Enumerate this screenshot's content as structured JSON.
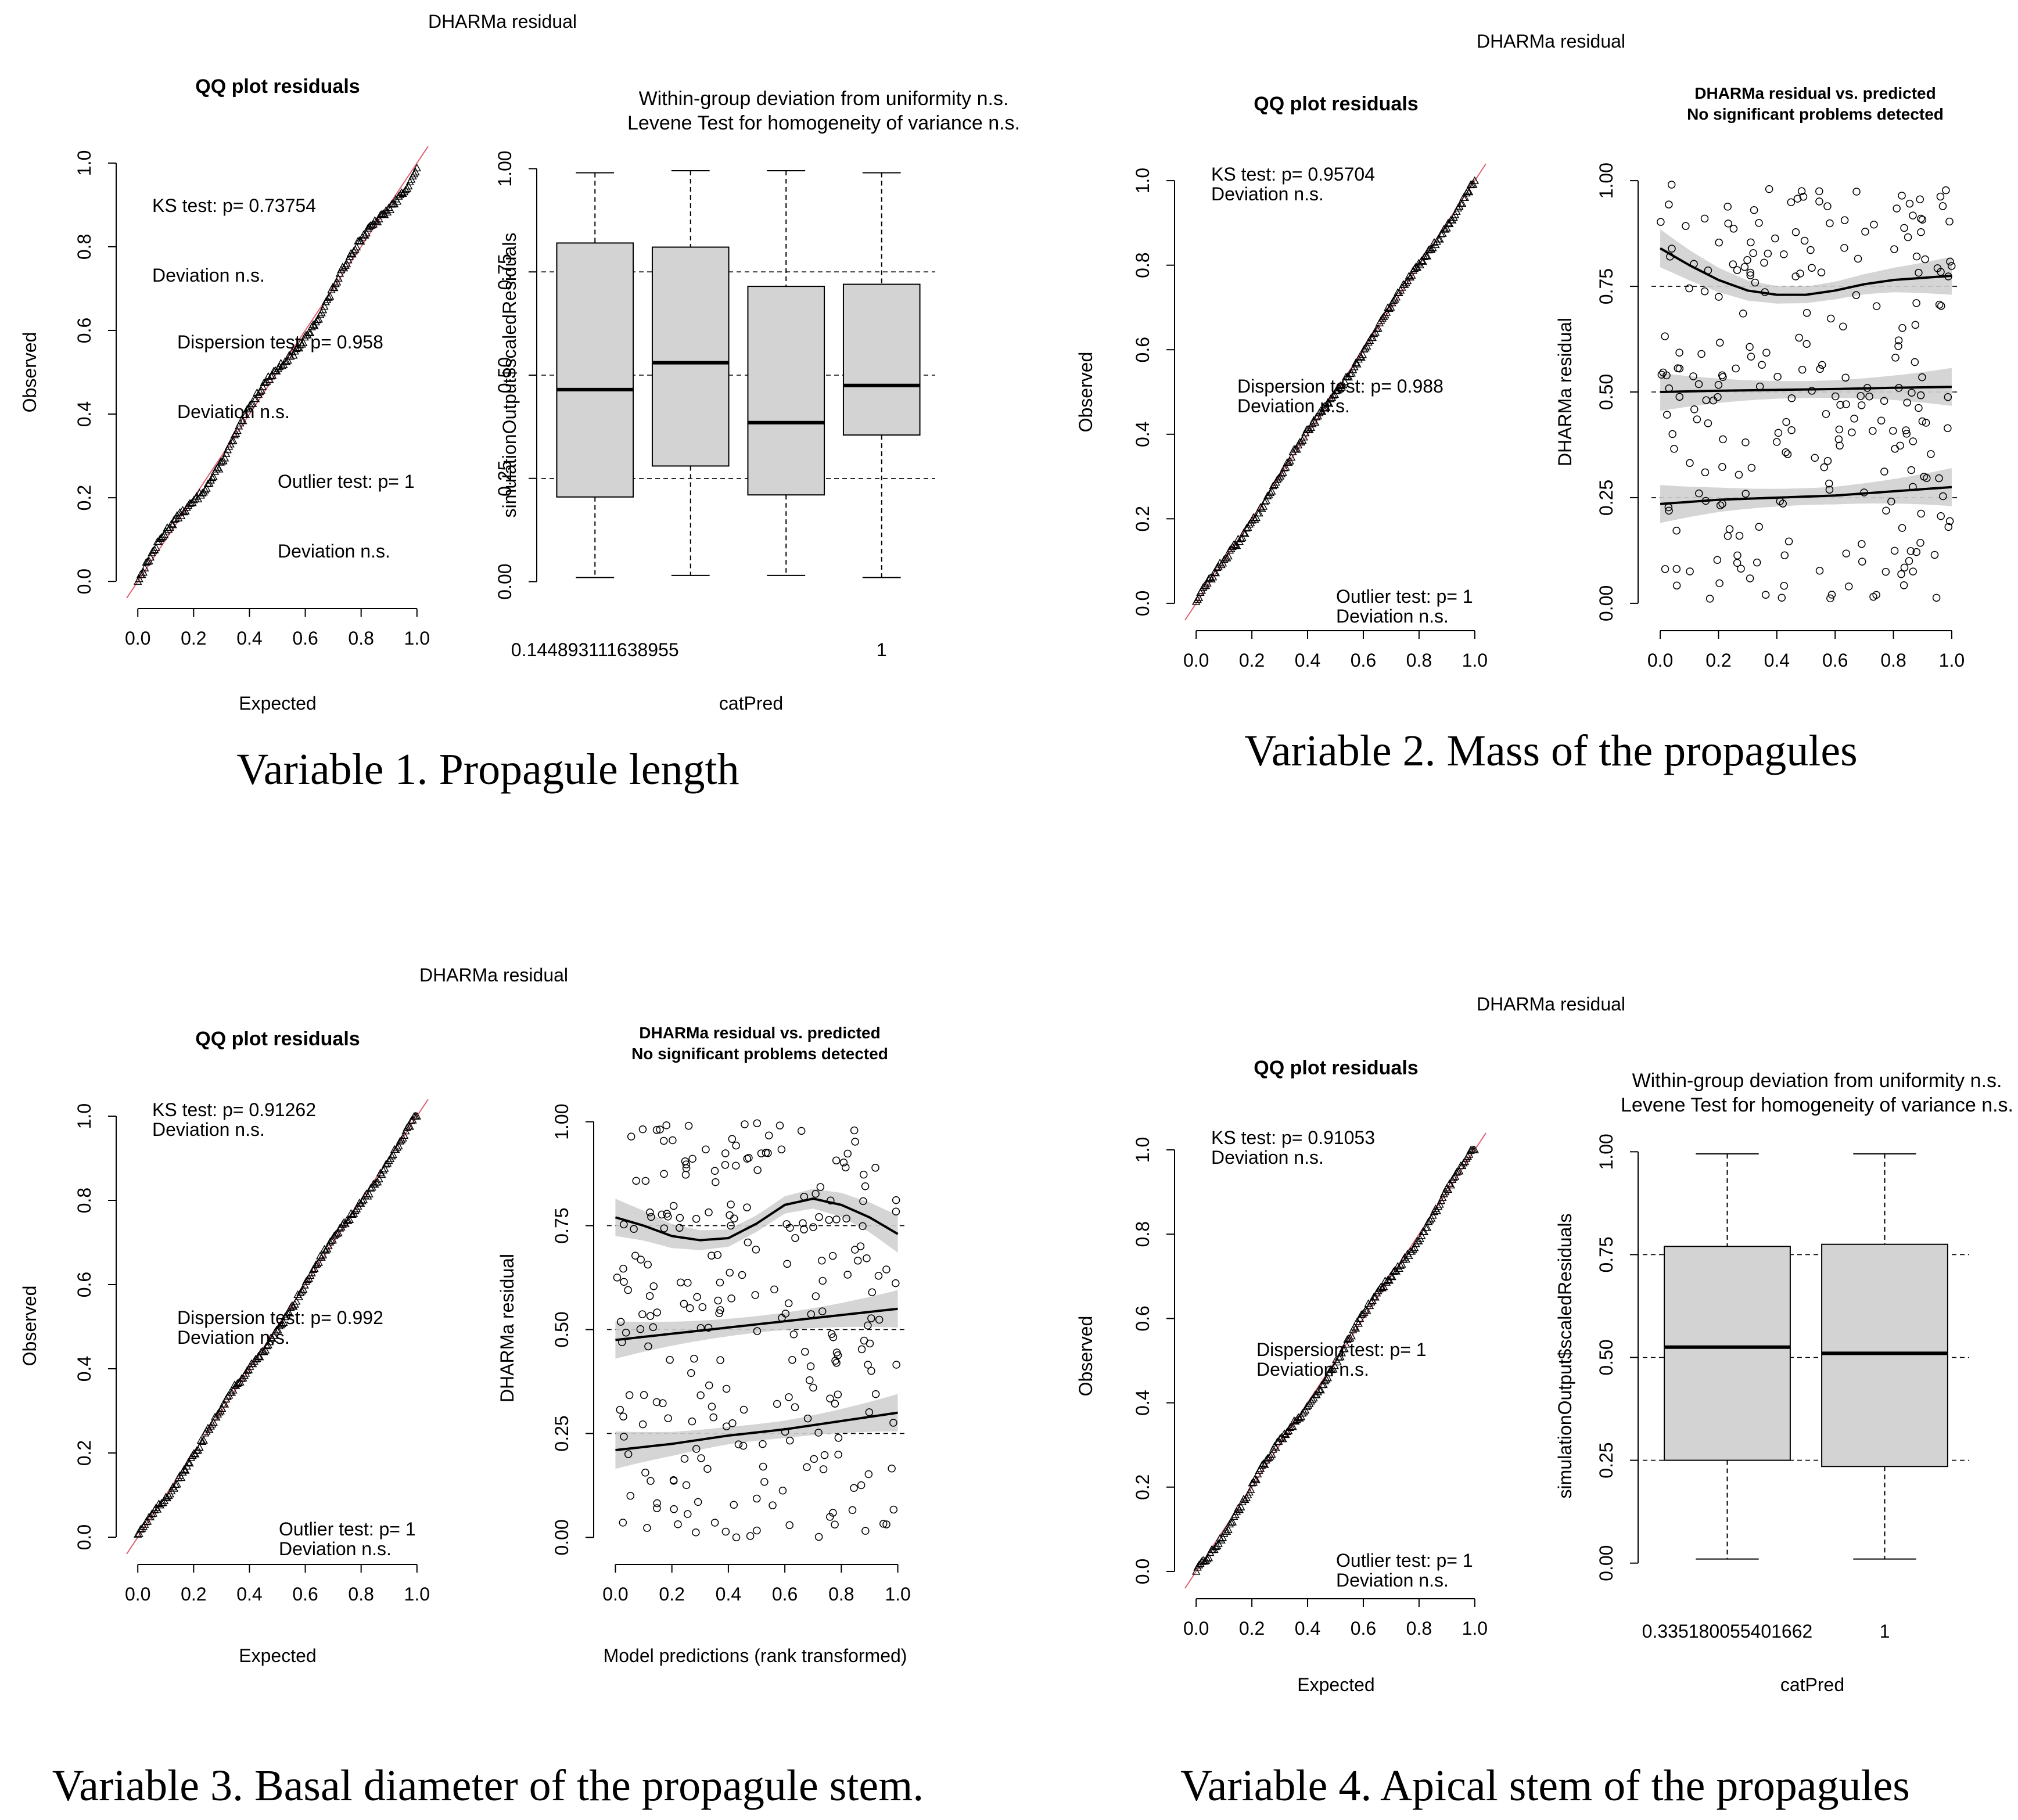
{
  "figure": {
    "panels": [
      {
        "id": "p1",
        "suptitle": "DHARMa residual",
        "caption": "Variable 1. Propagule length",
        "qq": {
          "title": "QQ plot residuals",
          "xlabel": "Expected",
          "ylabel": "Observed",
          "ticks": [
            "0.0",
            "0.2",
            "0.4",
            "0.6",
            "0.8",
            "1.0"
          ],
          "annotations": [
            "KS test: p= 0.73754",
            "Deviation  n.s.",
            "Dispersion test: p= 0.958",
            "Deviation  n.s.",
            "Outlier test: p= 1",
            "Deviation  n.s."
          ]
        },
        "right": {
          "type": "box",
          "title_lines": [
            "Within-group deviation from uniformity n.s.",
            "Levene Test for homogeneity of variance n.s."
          ],
          "title_bold": false,
          "xlabel": "catPred",
          "ylabel": "simulationOutput$scaledResiduals",
          "yticks": [
            "0.00",
            "0.25",
            "0.50",
            "0.75",
            "1.00"
          ],
          "xticklabels": [
            "0.144893111638955",
            "1"
          ],
          "xticklabel_groups": [
            1,
            4
          ]
        }
      },
      {
        "id": "p2",
        "suptitle": "DHARMa residual",
        "caption": "Variable 2. Mass of the propagules",
        "qq": {
          "title": "QQ plot residuals",
          "xlabel": "",
          "ylabel": "Observed",
          "ticks": [
            "0.0",
            "0.2",
            "0.4",
            "0.6",
            "0.8",
            "1.0"
          ],
          "annotations": [
            "KS test: p= 0.95704",
            "Deviation  n.s.",
            "Dispersion test: p= 0.988",
            "Deviation  n.s.",
            "Outlier test: p= 1",
            "Deviation  n.s."
          ]
        },
        "right": {
          "type": "scatter",
          "title_lines": [
            "DHARMa residual vs. predicted",
            "No significant problems detected"
          ],
          "title_bold": true,
          "xlabel": "",
          "ylabel": "DHARMa residual",
          "yticks": [
            "0.00",
            "0.25",
            "0.50",
            "0.75",
            "1.00"
          ],
          "xticks": [
            "0.0",
            "0.2",
            "0.4",
            "0.6",
            "0.8",
            "1.0"
          ]
        }
      },
      {
        "id": "p3",
        "suptitle": "DHARMa residual",
        "caption": "Variable 3. Basal diameter of the propagule stem.",
        "qq": {
          "title": "QQ plot residuals",
          "xlabel": "Expected",
          "ylabel": "Observed",
          "ticks": [
            "0.0",
            "0.2",
            "0.4",
            "0.6",
            "0.8",
            "1.0"
          ],
          "annotations": [
            "KS test: p= 0.91262",
            "Deviation  n.s.",
            "Dispersion test: p= 0.992",
            "Deviation  n.s.",
            "Outlier test: p= 1",
            "Deviation  n.s."
          ]
        },
        "right": {
          "type": "scatter",
          "title_lines": [
            "DHARMa residual vs. predicted",
            "No significant problems detected"
          ],
          "title_bold": true,
          "xlabel": "Model predictions (rank transformed)",
          "ylabel": "DHARMa residual",
          "yticks": [
            "0.00",
            "0.25",
            "0.50",
            "0.75",
            "1.00"
          ],
          "xticks": [
            "0.0",
            "0.2",
            "0.4",
            "0.6",
            "0.8",
            "1.0"
          ]
        }
      },
      {
        "id": "p4",
        "suptitle": "DHARMa residual",
        "caption": "Variable 4. Apical stem of the propagules",
        "qq": {
          "title": "QQ plot residuals",
          "xlabel": "Expected",
          "ylabel": "Observed",
          "ticks": [
            "0.0",
            "0.2",
            "0.4",
            "0.6",
            "0.8",
            "1.0"
          ],
          "annotations": [
            "KS test: p= 0.91053",
            "Deviation  n.s.",
            "Dispersion test: p= 1",
            "Deviation  n.s.",
            "Outlier test: p= 1",
            "Deviation  n.s."
          ]
        },
        "right": {
          "type": "box",
          "title_lines": [
            "Within-group deviation from uniformity n.s.",
            "Levene Test for homogeneity of variance n.s."
          ],
          "title_bold": false,
          "xlabel": "catPred",
          "ylabel": "simulationOutput$scaledResiduals",
          "yticks": [
            "0.00",
            "0.25",
            "0.50",
            "0.75",
            "1.00"
          ],
          "xticklabels": [
            "0.335180055401662",
            "1"
          ],
          "xticklabel_groups": [
            1,
            2
          ]
        }
      }
    ]
  },
  "chart_data": [
    {
      "type": "scatter",
      "title": "QQ plot residuals",
      "panel": "Variable 1. Propagule length",
      "xlabel": "Expected",
      "ylabel": "Observed",
      "xlim": [
        0,
        1
      ],
      "ylim": [
        0,
        1
      ],
      "reference_line": "y = x",
      "wiggle_amplitude": 0.02
    },
    {
      "type": "box",
      "title": "Within-group deviation from uniformity n.s.",
      "panel": "Variable 1. Propagule length",
      "xlabel": "catPred",
      "ylabel": "simulationOutput$scaledResiduals",
      "ylim": [
        0,
        1
      ],
      "reference_lines": [
        0.25,
        0.5,
        0.75
      ],
      "boxes": [
        {
          "min": 0.01,
          "q1": 0.205,
          "median": 0.465,
          "q3": 0.82,
          "max": 0.99
        },
        {
          "min": 0.015,
          "q1": 0.28,
          "median": 0.53,
          "q3": 0.81,
          "max": 0.995
        },
        {
          "min": 0.015,
          "q1": 0.21,
          "median": 0.385,
          "q3": 0.715,
          "max": 0.995
        },
        {
          "min": 0.01,
          "q1": 0.355,
          "median": 0.475,
          "q3": 0.72,
          "max": 0.99
        }
      ]
    },
    {
      "type": "scatter",
      "title": "QQ plot residuals",
      "panel": "Variable 2. Mass of the propagules",
      "xlabel": "",
      "ylabel": "Observed",
      "xlim": [
        0,
        1
      ],
      "ylim": [
        0,
        1
      ],
      "reference_line": "y = x",
      "wiggle_amplitude": 0.008
    },
    {
      "type": "scatter",
      "title": "DHARMa residual vs. predicted",
      "panel": "Variable 2. Mass of the propagules",
      "xlabel": "",
      "ylabel": "DHARMa residual",
      "xlim": [
        0,
        1
      ],
      "ylim": [
        0,
        1
      ],
      "reference_lines": [
        0.25,
        0.5,
        0.75
      ],
      "n_points": 250,
      "quantile_curves": [
        {
          "quantile": 0.25,
          "x": [
            0,
            0.2,
            0.4,
            0.6,
            0.8,
            1.0
          ],
          "y": [
            0.235,
            0.245,
            0.25,
            0.255,
            0.265,
            0.275
          ]
        },
        {
          "quantile": 0.5,
          "x": [
            0,
            0.2,
            0.4,
            0.6,
            0.8,
            1.0
          ],
          "y": [
            0.5,
            0.503,
            0.505,
            0.507,
            0.51,
            0.512
          ]
        },
        {
          "quantile": 0.75,
          "x": [
            0,
            0.1,
            0.2,
            0.3,
            0.4,
            0.5,
            0.6,
            0.7,
            0.8,
            0.9,
            1.0
          ],
          "y": [
            0.84,
            0.8,
            0.765,
            0.74,
            0.73,
            0.73,
            0.74,
            0.755,
            0.765,
            0.77,
            0.775
          ]
        }
      ]
    },
    {
      "type": "scatter",
      "title": "QQ plot residuals",
      "panel": "Variable 3. Basal diameter of the propagule stem.",
      "xlabel": "Expected",
      "ylabel": "Observed",
      "xlim": [
        0,
        1
      ],
      "ylim": [
        0,
        1
      ],
      "reference_line": "y = x",
      "wiggle_amplitude": 0.01
    },
    {
      "type": "scatter",
      "title": "DHARMa residual vs. predicted",
      "panel": "Variable 3. Basal diameter of the propagule stem.",
      "xlabel": "Model predictions (rank transformed)",
      "ylabel": "DHARMa residual",
      "xlim": [
        0,
        1
      ],
      "ylim": [
        0,
        1
      ],
      "reference_lines": [
        0.25,
        0.5,
        0.75
      ],
      "n_points": 250,
      "quantile_curves": [
        {
          "quantile": 0.25,
          "x": [
            0,
            0.2,
            0.4,
            0.6,
            0.8,
            1.0
          ],
          "y": [
            0.21,
            0.225,
            0.245,
            0.26,
            0.28,
            0.3
          ]
        },
        {
          "quantile": 0.5,
          "x": [
            0,
            0.2,
            0.4,
            0.6,
            0.8,
            1.0
          ],
          "y": [
            0.475,
            0.49,
            0.505,
            0.52,
            0.535,
            0.55
          ]
        },
        {
          "quantile": 0.75,
          "x": [
            0,
            0.1,
            0.2,
            0.3,
            0.4,
            0.5,
            0.6,
            0.7,
            0.8,
            0.9,
            1.0
          ],
          "y": [
            0.77,
            0.75,
            0.725,
            0.715,
            0.72,
            0.755,
            0.8,
            0.815,
            0.8,
            0.77,
            0.73
          ]
        }
      ]
    },
    {
      "type": "scatter",
      "title": "QQ plot residuals",
      "panel": "Variable 4. Apical stem of the propagules",
      "xlabel": "Expected",
      "ylabel": "Observed",
      "xlim": [
        0,
        1
      ],
      "ylim": [
        0,
        1
      ],
      "reference_line": "y = x",
      "wiggle_amplitude": 0.012
    },
    {
      "type": "box",
      "title": "Within-group deviation from uniformity n.s.",
      "panel": "Variable 4. Apical stem of the propagules",
      "xlabel": "catPred",
      "ylabel": "simulationOutput$scaledResiduals",
      "ylim": [
        0,
        1
      ],
      "reference_lines": [
        0.25,
        0.5,
        0.75
      ],
      "boxes": [
        {
          "min": 0.01,
          "q1": 0.25,
          "median": 0.525,
          "q3": 0.77,
          "max": 0.995
        },
        {
          "min": 0.01,
          "q1": 0.235,
          "median": 0.51,
          "q3": 0.775,
          "max": 0.995
        }
      ]
    }
  ]
}
